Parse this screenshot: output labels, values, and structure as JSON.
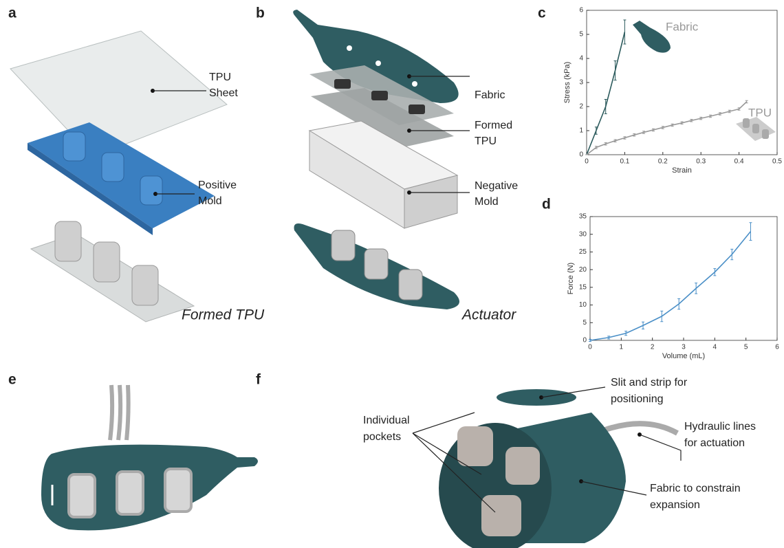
{
  "panels": {
    "a": {
      "label": "a",
      "callouts": [
        {
          "lines": [
            "TPU",
            "Sheet"
          ]
        },
        {
          "lines": [
            "Positive",
            "Mold"
          ]
        }
      ],
      "caption": "Formed TPU"
    },
    "b": {
      "label": "b",
      "callouts": [
        {
          "lines": [
            "Fabric"
          ]
        },
        {
          "lines": [
            "Formed",
            "TPU"
          ]
        },
        {
          "lines": [
            "Negative",
            "Mold"
          ]
        }
      ],
      "caption": "Actuator"
    },
    "c": {
      "label": "c"
    },
    "d": {
      "label": "d"
    },
    "e": {
      "label": "e"
    },
    "f": {
      "label": "f",
      "callouts": [
        {
          "lines": [
            "Slit and strip for",
            "positioning"
          ]
        },
        {
          "lines": [
            "Hydraulic lines",
            "for actuation"
          ]
        },
        {
          "lines": [
            "Individual",
            "pockets"
          ]
        },
        {
          "lines": [
            "Fabric to constrain",
            "expansion"
          ]
        }
      ]
    }
  },
  "chart_data": [
    {
      "type": "line",
      "x_label": "Strain",
      "y_label": "Stress (kPa)",
      "xlim": [
        0,
        0.5
      ],
      "ylim": [
        0,
        6
      ],
      "xticks": [
        0,
        0.1,
        0.2,
        0.3,
        0.4,
        0.5
      ],
      "yticks": [
        0,
        1,
        2,
        3,
        4,
        5,
        6
      ],
      "series": [
        {
          "name": "Fabric",
          "color": "#2b5a5c",
          "x": [
            0,
            0.025,
            0.05,
            0.075,
            0.1
          ],
          "values": [
            0,
            1,
            2,
            3.5,
            5.1
          ],
          "errors": [
            0,
            0.15,
            0.3,
            0.4,
            0.5
          ]
        },
        {
          "name": "TPU",
          "color": "#999999",
          "x": [
            0,
            0.025,
            0.05,
            0.075,
            0.1,
            0.125,
            0.15,
            0.175,
            0.2,
            0.225,
            0.25,
            0.275,
            0.3,
            0.325,
            0.35,
            0.375,
            0.4,
            0.42
          ],
          "values": [
            0,
            0.3,
            0.45,
            0.58,
            0.7,
            0.82,
            0.93,
            1.03,
            1.13,
            1.23,
            1.32,
            1.42,
            1.51,
            1.6,
            1.7,
            1.8,
            1.9,
            2.2
          ],
          "errors": [
            0,
            0.05,
            0.05,
            0.05,
            0.05,
            0.05,
            0.05,
            0.05,
            0.05,
            0.05,
            0.05,
            0.05,
            0.05,
            0.05,
            0.05,
            0.05,
            0.05,
            0.05
          ]
        }
      ]
    },
    {
      "type": "line",
      "x_label": "Volume (mL)",
      "y_label": "Force (N)",
      "xlim": [
        0,
        6
      ],
      "ylim": [
        0,
        35
      ],
      "xticks": [
        0,
        1,
        2,
        3,
        4,
        5,
        6
      ],
      "yticks": [
        0,
        5,
        10,
        15,
        20,
        25,
        30,
        35
      ],
      "series": [
        {
          "color": "#4a8fc7",
          "x": [
            0,
            0.6,
            1.15,
            1.7,
            2.3,
            2.85,
            3.4,
            4.0,
            4.55,
            5.15
          ],
          "values": [
            0,
            0.8,
            2,
            4.2,
            6.8,
            10.3,
            14.7,
            19.3,
            24.3,
            30.8
          ],
          "errors": [
            0.3,
            0.4,
            0.6,
            1,
            1.5,
            1.5,
            1.5,
            1,
            1.5,
            2.5
          ]
        }
      ]
    }
  ]
}
